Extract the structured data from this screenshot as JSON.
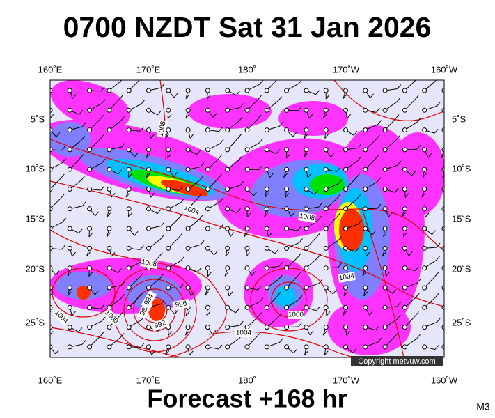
{
  "header": {
    "title": "0700 NZDT Sat 31 Jan 2026"
  },
  "map": {
    "top_longitudes": [
      "160˚E",
      "170˚E",
      "180˚",
      "170˚W",
      "160˚W"
    ],
    "bottom_longitudes": [
      "160˚E",
      "170˚E",
      "180˚",
      "170˚W",
      "160˚W"
    ],
    "left_latitudes": [
      "5˚S",
      "10˚S",
      "15˚S",
      "20˚S",
      "25˚S"
    ],
    "right_latitudes": [
      "5˚S",
      "10˚S",
      "15˚S",
      "20˚S",
      "25˚S"
    ],
    "isobar_labels": [
      "1008",
      "1004",
      "1008",
      "1008",
      "1004",
      "1000",
      "996",
      "988",
      "984",
      "992",
      "1004",
      "1000",
      "1004"
    ],
    "copyright": "Copyright metvuw.com"
  },
  "footer": {
    "caption": "Forecast +168 hr",
    "code": "M3"
  }
}
